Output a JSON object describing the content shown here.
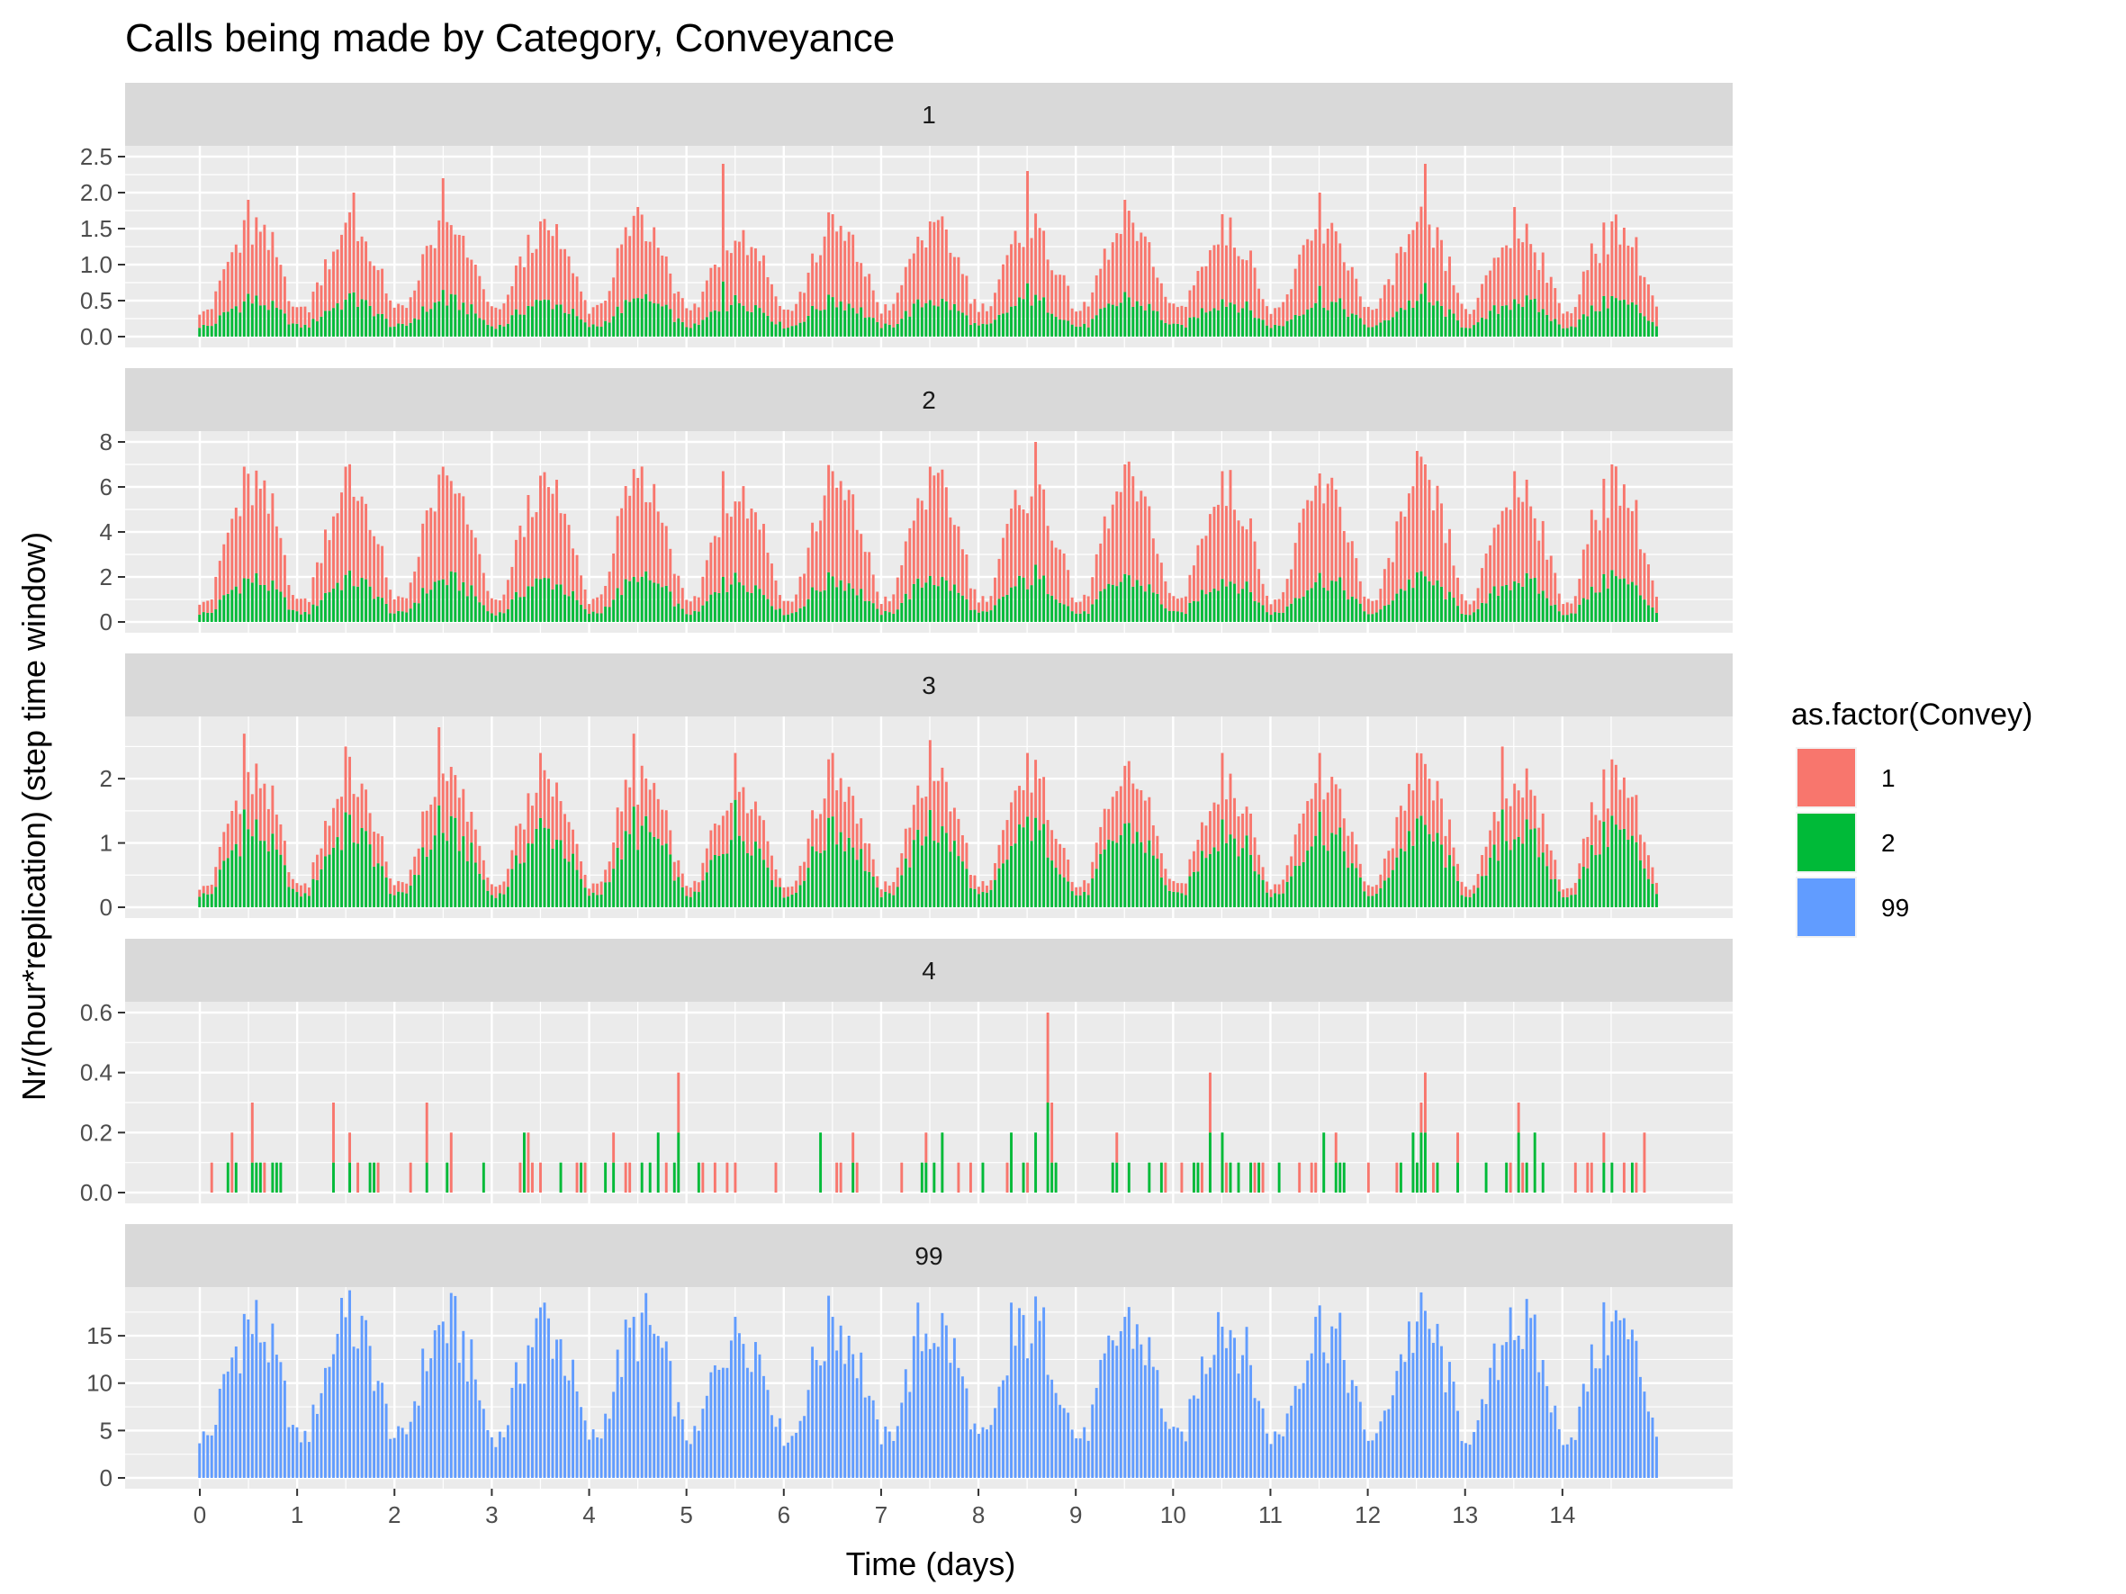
{
  "chart_data": {
    "type": "bar",
    "stacked": true,
    "faceted": true,
    "title": "Calls being made by Category, Conveyance",
    "xlabel": "Time (days)",
    "ylabel": "Nr/(hour*replication) (step time window)",
    "xlim": [
      0,
      15
    ],
    "x_ticks": [
      "0",
      "1",
      "2",
      "3",
      "4",
      "5",
      "6",
      "7",
      "8",
      "9",
      "10",
      "11",
      "12",
      "13",
      "14"
    ],
    "bin_width_days": 0.0417,
    "legend": {
      "title": "as.factor(Convey)",
      "position": "right",
      "entries": [
        {
          "label": "1",
          "color": "#F8766D"
        },
        {
          "label": "2",
          "color": "#00BA38"
        },
        {
          "label": "99",
          "color": "#619CFF"
        }
      ]
    },
    "facets": [
      {
        "label": "1",
        "ylim": [
          0,
          2.5
        ],
        "y_ticks": [
          "0.0",
          "0.5",
          "1.0",
          "1.5",
          "2.0",
          "2.5"
        ],
        "peaks": [
          [
            0.5,
            1.9
          ],
          [
            1.6,
            2.0
          ],
          [
            2.5,
            2.2
          ],
          [
            3.5,
            1.6
          ],
          [
            4.5,
            1.8
          ],
          [
            5.4,
            2.4
          ],
          [
            6.5,
            1.7
          ],
          [
            7.5,
            1.6
          ],
          [
            8.5,
            2.3
          ],
          [
            9.5,
            1.9
          ],
          [
            10.5,
            1.7
          ],
          [
            11.5,
            2.0
          ],
          [
            12.6,
            2.4
          ],
          [
            13.5,
            1.8
          ],
          [
            14.5,
            1.6
          ]
        ],
        "series": [
          {
            "name": "2",
            "base": 0.15,
            "amp": 0.35
          },
          {
            "name": "1",
            "base": 0.25,
            "amp": 0.75
          }
        ]
      },
      {
        "label": "2",
        "ylim": [
          0,
          8
        ],
        "y_ticks": [
          "0",
          "2",
          "4",
          "6",
          "8"
        ],
        "peaks": [
          [
            0.45,
            6.9
          ],
          [
            1.5,
            6.9
          ],
          [
            2.5,
            6.9
          ],
          [
            3.5,
            6.5
          ],
          [
            4.5,
            6.4
          ],
          [
            5.4,
            6.7
          ],
          [
            6.5,
            6.7
          ],
          [
            7.5,
            6.9
          ],
          [
            8.6,
            8.0
          ],
          [
            9.5,
            7.0
          ],
          [
            10.5,
            6.7
          ],
          [
            11.5,
            6.6
          ],
          [
            12.5,
            7.6
          ],
          [
            13.5,
            6.7
          ],
          [
            14.5,
            7.0
          ]
        ],
        "series": [
          {
            "name": "2",
            "base": 0.4,
            "amp": 1.5
          },
          {
            "name": "1",
            "base": 0.6,
            "amp": 3.6
          }
        ]
      },
      {
        "label": "3",
        "ylim": [
          0,
          2.8
        ],
        "y_ticks": [
          "0",
          "1",
          "2"
        ],
        "peaks": [
          [
            0.45,
            2.7
          ],
          [
            1.5,
            2.5
          ],
          [
            2.45,
            2.8
          ],
          [
            3.5,
            2.4
          ],
          [
            4.45,
            2.7
          ],
          [
            5.5,
            2.4
          ],
          [
            6.5,
            2.4
          ],
          [
            7.5,
            2.6
          ],
          [
            8.5,
            2.4
          ],
          [
            9.5,
            2.2
          ],
          [
            10.5,
            2.4
          ],
          [
            11.5,
            2.4
          ],
          [
            12.5,
            2.4
          ],
          [
            13.4,
            2.5
          ],
          [
            14.5,
            2.3
          ]
        ],
        "series": [
          {
            "name": "2",
            "base": 0.2,
            "amp": 1.0
          },
          {
            "name": "1",
            "base": 0.15,
            "amp": 0.65
          }
        ]
      },
      {
        "label": "4",
        "ylim": [
          0,
          0.6
        ],
        "y_ticks": [
          "0.0",
          "0.2",
          "0.4",
          "0.6"
        ],
        "peaks": [
          [
            4.9,
            0.4
          ],
          [
            8.7,
            0.6
          ],
          [
            10.4,
            0.4
          ],
          [
            12.6,
            0.4
          ]
        ],
        "series": [
          {
            "name": "2",
            "base": 0.1,
            "amp": 0.0
          },
          {
            "name": "1",
            "base": 0.1,
            "amp": 0.0
          }
        ]
      },
      {
        "label": "99",
        "ylim": [
          0,
          19
        ],
        "y_ticks": [
          "0",
          "5",
          "10",
          "15"
        ],
        "peaks": [
          [
            0.45,
            17.3
          ],
          [
            1.45,
            19.0
          ],
          [
            2.5,
            16.5
          ],
          [
            3.55,
            18.5
          ],
          [
            4.45,
            17.0
          ],
          [
            5.5,
            17.0
          ],
          [
            6.5,
            17.0
          ],
          [
            7.4,
            18.5
          ],
          [
            8.35,
            18.5
          ],
          [
            9.5,
            17.0
          ],
          [
            10.45,
            17.5
          ],
          [
            11.45,
            17.0
          ],
          [
            12.5,
            16.5
          ],
          [
            13.45,
            18.0
          ],
          [
            14.5,
            16.5
          ]
        ],
        "series": [
          {
            "name": "99",
            "base": 4.5,
            "amp": 12.0
          }
        ]
      }
    ]
  }
}
